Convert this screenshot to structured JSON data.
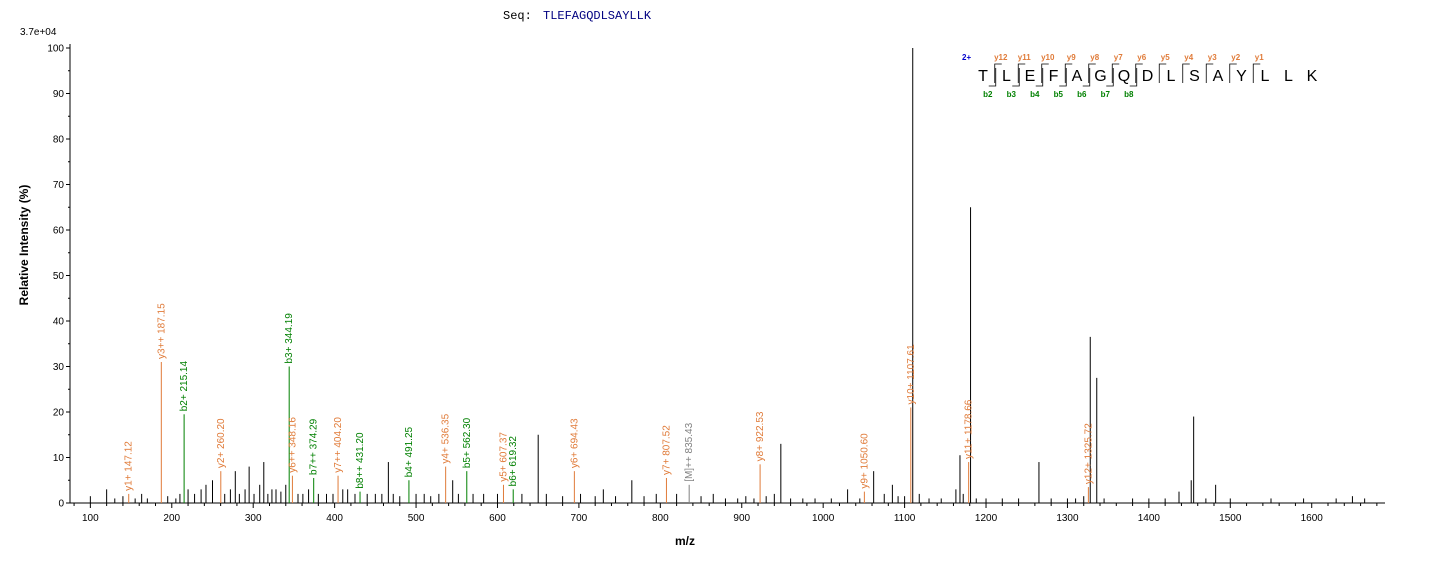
{
  "header": {
    "seq_label": "Seq:",
    "seq_value": "TLEFAGQDLSAYLLK",
    "max_intensity": "3.7e+04"
  },
  "colors": {
    "y_ion": "#e07b39",
    "b_ion": "#008000",
    "other": "#808080",
    "peak": "#000000",
    "charge": "#0000cc",
    "seq_header": "#000080"
  },
  "chart_data": {
    "type": "bar",
    "xlabel": "m/z",
    "ylabel": "Relative   Intensity (%)",
    "xlim": [
      75,
      1690
    ],
    "ylim": [
      0,
      100
    ],
    "x_ticks": [
      100,
      200,
      300,
      400,
      500,
      600,
      700,
      800,
      900,
      1000,
      1100,
      1200,
      1300,
      1400,
      1500,
      1600
    ],
    "y_ticks": [
      0,
      10,
      20,
      30,
      40,
      50,
      60,
      70,
      80,
      90,
      100
    ],
    "peaks": [
      [
        100,
        1.5
      ],
      [
        120,
        3
      ],
      [
        130,
        1
      ],
      [
        140,
        1.5
      ],
      [
        147.12,
        2
      ],
      [
        155,
        1
      ],
      [
        163,
        2
      ],
      [
        170,
        1
      ],
      [
        187.15,
        31
      ],
      [
        195,
        1.5
      ],
      [
        205,
        1
      ],
      [
        210,
        2
      ],
      [
        215.14,
        19.5
      ],
      [
        220,
        3
      ],
      [
        228,
        2
      ],
      [
        236,
        3
      ],
      [
        242,
        4
      ],
      [
        250,
        5
      ],
      [
        260.2,
        7
      ],
      [
        265,
        2
      ],
      [
        272,
        3
      ],
      [
        278,
        7
      ],
      [
        283,
        2
      ],
      [
        290,
        3
      ],
      [
        295,
        8
      ],
      [
        301,
        2
      ],
      [
        308,
        4
      ],
      [
        313,
        9
      ],
      [
        318,
        2
      ],
      [
        323,
        3
      ],
      [
        328,
        3
      ],
      [
        334,
        2.5
      ],
      [
        340,
        4
      ],
      [
        344.19,
        30
      ],
      [
        348.16,
        6
      ],
      [
        355,
        2
      ],
      [
        361,
        2
      ],
      [
        368,
        3
      ],
      [
        374.29,
        5.5
      ],
      [
        380,
        2
      ],
      [
        390,
        2
      ],
      [
        398,
        2
      ],
      [
        404.2,
        6
      ],
      [
        410,
        3
      ],
      [
        416,
        3
      ],
      [
        425,
        2
      ],
      [
        431.2,
        2.5
      ],
      [
        440,
        2
      ],
      [
        450,
        2
      ],
      [
        458,
        2
      ],
      [
        466,
        9
      ],
      [
        472,
        2
      ],
      [
        480,
        1.5
      ],
      [
        491.25,
        5
      ],
      [
        500,
        2
      ],
      [
        510,
        2
      ],
      [
        518,
        1.5
      ],
      [
        528,
        2
      ],
      [
        536.35,
        8
      ],
      [
        545,
        5
      ],
      [
        552,
        2
      ],
      [
        562.3,
        7
      ],
      [
        570,
        2
      ],
      [
        583,
        2
      ],
      [
        600,
        2
      ],
      [
        607.37,
        4
      ],
      [
        619.32,
        3
      ],
      [
        630,
        2
      ],
      [
        650,
        15
      ],
      [
        660,
        2
      ],
      [
        680,
        1.5
      ],
      [
        694.43,
        7
      ],
      [
        702,
        2
      ],
      [
        720,
        1.5
      ],
      [
        730,
        3
      ],
      [
        745,
        1.5
      ],
      [
        765,
        5
      ],
      [
        780,
        1.5
      ],
      [
        795,
        2
      ],
      [
        807.52,
        5.5
      ],
      [
        820,
        2
      ],
      [
        835.43,
        4
      ],
      [
        850,
        1.5
      ],
      [
        865,
        2
      ],
      [
        880,
        1
      ],
      [
        895,
        1
      ],
      [
        905,
        1.5
      ],
      [
        915,
        1
      ],
      [
        922.53,
        8.5
      ],
      [
        930,
        1.5
      ],
      [
        940,
        2
      ],
      [
        948,
        13
      ],
      [
        960,
        1
      ],
      [
        975,
        1
      ],
      [
        990,
        1
      ],
      [
        1010,
        1
      ],
      [
        1030,
        3
      ],
      [
        1045,
        1
      ],
      [
        1050.6,
        2.5
      ],
      [
        1062,
        7
      ],
      [
        1075,
        2
      ],
      [
        1085,
        4
      ],
      [
        1092,
        1.5
      ],
      [
        1100,
        1.5
      ],
      [
        1107.61,
        21
      ],
      [
        1110,
        100
      ],
      [
        1118,
        2
      ],
      [
        1130,
        1
      ],
      [
        1145,
        1
      ],
      [
        1163,
        3
      ],
      [
        1168,
        10.5
      ],
      [
        1172,
        2
      ],
      [
        1178.66,
        9
      ],
      [
        1181,
        65
      ],
      [
        1188,
        1
      ],
      [
        1200,
        1
      ],
      [
        1220,
        1
      ],
      [
        1240,
        1
      ],
      [
        1265,
        9
      ],
      [
        1280,
        1
      ],
      [
        1300,
        1
      ],
      [
        1310,
        1
      ],
      [
        1320,
        1.5
      ],
      [
        1325.72,
        3.5
      ],
      [
        1328,
        36.5
      ],
      [
        1336,
        27.5
      ],
      [
        1345,
        1
      ],
      [
        1380,
        1
      ],
      [
        1400,
        1
      ],
      [
        1420,
        1
      ],
      [
        1437,
        2.5
      ],
      [
        1452,
        5
      ],
      [
        1455,
        19
      ],
      [
        1470,
        1
      ],
      [
        1482,
        4
      ],
      [
        1500,
        1
      ],
      [
        1550,
        1
      ],
      [
        1590,
        1
      ],
      [
        1630,
        1
      ],
      [
        1650,
        1.5
      ],
      [
        1665,
        1
      ]
    ],
    "annotations": [
      {
        "mz": 147.12,
        "label": "y1+ 147.12",
        "type": "y"
      },
      {
        "mz": 187.15,
        "label": "y3++ 187.15",
        "type": "y"
      },
      {
        "mz": 215.14,
        "label": "b2+ 215.14",
        "type": "b"
      },
      {
        "mz": 260.2,
        "label": "y2+ 260.20",
        "type": "y"
      },
      {
        "mz": 344.19,
        "label": "b3+ 344.19",
        "type": "b"
      },
      {
        "mz": 348.16,
        "label": "y6++ 348.16",
        "type": "y"
      },
      {
        "mz": 374.29,
        "label": "b7++ 374.29",
        "type": "b"
      },
      {
        "mz": 404.2,
        "label": "y7++ 404.20",
        "type": "y"
      },
      {
        "mz": 431.2,
        "label": "b8++ 431.20",
        "type": "b"
      },
      {
        "mz": 491.25,
        "label": "b4+ 491.25",
        "type": "b"
      },
      {
        "mz": 536.35,
        "label": "y4+ 536.35",
        "type": "y"
      },
      {
        "mz": 562.3,
        "label": "b5+ 562.30",
        "type": "b"
      },
      {
        "mz": 607.37,
        "label": "y5+ 607.37",
        "type": "y"
      },
      {
        "mz": 619.32,
        "label": "b6+ 619.32",
        "type": "b"
      },
      {
        "mz": 694.43,
        "label": "y6+ 694.43",
        "type": "y"
      },
      {
        "mz": 807.52,
        "label": "y7+ 807.52",
        "type": "y"
      },
      {
        "mz": 835.43,
        "label": "[M]++ 835.43",
        "type": "m"
      },
      {
        "mz": 922.53,
        "label": "y8+ 922.53",
        "type": "y"
      },
      {
        "mz": 1050.6,
        "label": "y9+ 1050.60",
        "type": "y"
      },
      {
        "mz": 1107.61,
        "label": "y10+ 1107.61",
        "type": "y"
      },
      {
        "mz": 1178.66,
        "label": "y11+ 1178.66",
        "type": "y"
      },
      {
        "mz": 1325.72,
        "label": "y12+ 1325.72",
        "type": "y"
      }
    ]
  },
  "sequence_map": {
    "charge": "2+",
    "residues": [
      "T",
      "L",
      "E",
      "F",
      "A",
      "G",
      "Q",
      "D",
      "L",
      "S",
      "A",
      "Y",
      "L",
      "L",
      "K"
    ],
    "y_labels": [
      {
        "after": 1,
        "label": "y12"
      },
      {
        "after": 2,
        "label": "y11"
      },
      {
        "after": 3,
        "label": "y10"
      },
      {
        "after": 4,
        "label": "y9"
      },
      {
        "after": 5,
        "label": "y8"
      },
      {
        "after": 6,
        "label": "y7"
      },
      {
        "after": 7,
        "label": "y6"
      },
      {
        "after": 8,
        "label": "y5"
      },
      {
        "after": 9,
        "label": "y4"
      },
      {
        "after": 10,
        "label": "y3"
      },
      {
        "after": 11,
        "label": "y2"
      },
      {
        "after": 12,
        "label": "y1"
      }
    ],
    "b_labels": [
      {
        "after": 1,
        "label": "b2"
      },
      {
        "after": 2,
        "label": "b3"
      },
      {
        "after": 3,
        "label": "b4"
      },
      {
        "after": 4,
        "label": "b5"
      },
      {
        "after": 5,
        "label": "b6"
      },
      {
        "after": 6,
        "label": "b7"
      },
      {
        "after": 7,
        "label": "b8"
      }
    ]
  }
}
